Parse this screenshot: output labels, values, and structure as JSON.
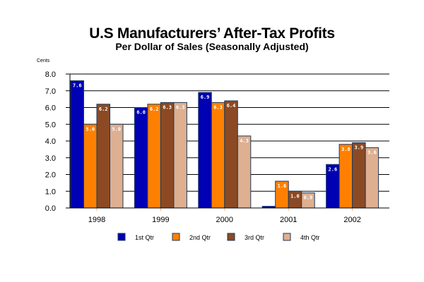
{
  "chart_data": {
    "type": "bar",
    "title": "U.S Manufacturers’ After-Tax Profits",
    "subtitle": "Per Dollar of Sales (Seasonally Adjusted)",
    "ylabel": "Cents",
    "xlabel": "",
    "ylim": [
      0,
      8
    ],
    "yticks": [
      "0.0",
      "1.0",
      "2.0",
      "3.0",
      "4.0",
      "5.0",
      "6.0",
      "7.0",
      "8.0"
    ],
    "grid": true,
    "legend_position": "bottom",
    "categories": [
      "1998",
      "1999",
      "2000",
      "2001",
      "2002"
    ],
    "series": [
      {
        "name": "1st Qtr",
        "color": "#0000b4",
        "values": [
          7.6,
          6.0,
          6.9,
          0.1,
          2.6
        ],
        "labels": [
          "7.6",
          "6.0",
          "6.9",
          "",
          "2.6"
        ]
      },
      {
        "name": "2nd Qtr",
        "color": "#ff8000",
        "values": [
          5.0,
          6.2,
          6.3,
          1.6,
          3.8
        ],
        "labels": [
          "5.0",
          "6.2",
          "6.3",
          "1.6",
          "3.8"
        ]
      },
      {
        "name": "3rd Qtr",
        "color": "#8b4a24",
        "values": [
          6.2,
          6.3,
          6.4,
          1.0,
          3.9
        ],
        "labels": [
          "6.2",
          "6.3",
          "6.4",
          "1.0",
          "3.9"
        ]
      },
      {
        "name": "4th Qtr",
        "color": "#deaf90",
        "values": [
          5.0,
          6.3,
          4.3,
          0.9,
          3.6
        ],
        "labels": [
          "5.0",
          "6.3",
          "4.3",
          "0.9",
          "3.6"
        ]
      }
    ]
  }
}
